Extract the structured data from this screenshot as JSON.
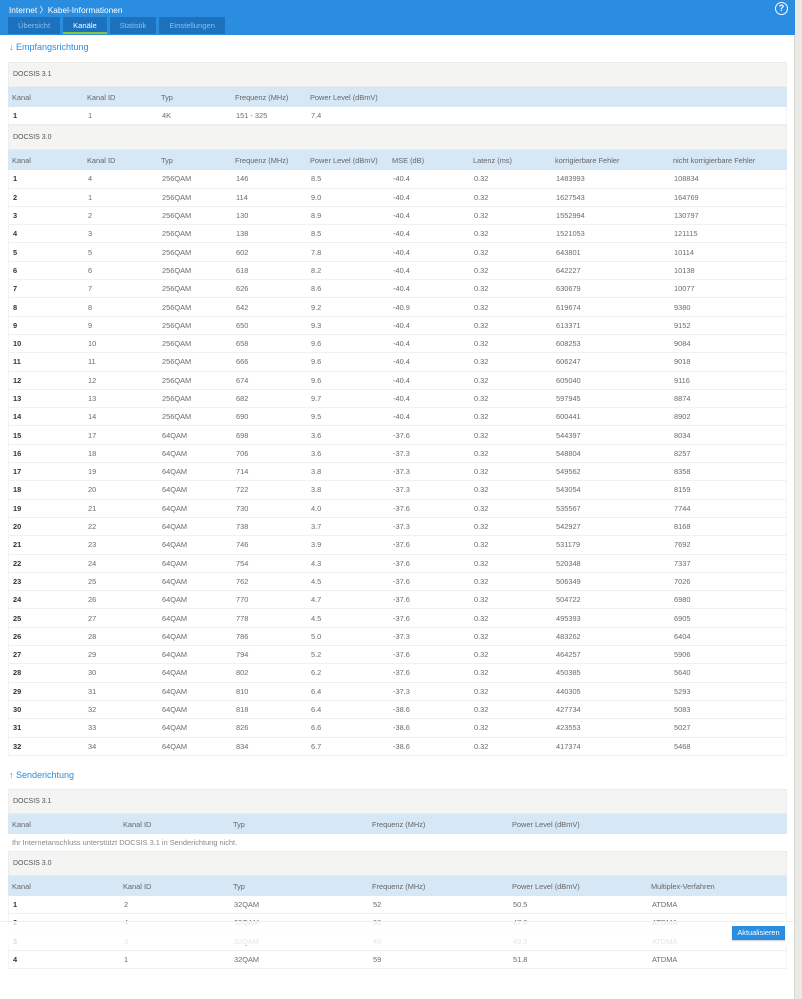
{
  "header": {
    "breadcrumb": "Internet 〉Kabel-Informationen",
    "help": "?"
  },
  "tabs": [
    "Übersicht",
    "Kanäle",
    "Statistik",
    "Einstellungen"
  ],
  "downstream": {
    "title": "↓ Empfangsrichtung",
    "docsis31": {
      "label": "DOCSIS 3.1",
      "headers": [
        "Kanal",
        "Kanal ID",
        "Typ",
        "Frequenz (MHz)",
        "Power Level (dBmV)"
      ],
      "rows": [
        [
          "1",
          "1",
          "4K",
          "151 - 325",
          "7.4"
        ]
      ]
    },
    "docsis30": {
      "label": "DOCSIS 3.0",
      "headers": [
        "Kanal",
        "Kanal ID",
        "Typ",
        "Frequenz (MHz)",
        "Power Level (dBmV)",
        "MSE (dB)",
        "Latenz (ms)",
        "korrigierbare Fehler",
        "nicht korrigierbare Fehler"
      ],
      "rows": [
        [
          "1",
          "4",
          "256QAM",
          "146",
          "8.5",
          "-40.4",
          "0.32",
          "1483993",
          "108834"
        ],
        [
          "2",
          "1",
          "256QAM",
          "114",
          "9.0",
          "-40.4",
          "0.32",
          "1627543",
          "164769"
        ],
        [
          "3",
          "2",
          "256QAM",
          "130",
          "8.9",
          "-40.4",
          "0.32",
          "1552994",
          "130797"
        ],
        [
          "4",
          "3",
          "256QAM",
          "138",
          "8.5",
          "-40.4",
          "0.32",
          "1521053",
          "121115"
        ],
        [
          "5",
          "5",
          "256QAM",
          "602",
          "7.8",
          "-40.4",
          "0.32",
          "643801",
          "10114"
        ],
        [
          "6",
          "6",
          "256QAM",
          "618",
          "8.2",
          "-40.4",
          "0.32",
          "642227",
          "10138"
        ],
        [
          "7",
          "7",
          "256QAM",
          "626",
          "8.6",
          "-40.4",
          "0.32",
          "630679",
          "10077"
        ],
        [
          "8",
          "8",
          "256QAM",
          "642",
          "9.2",
          "-40.9",
          "0.32",
          "619674",
          "9380"
        ],
        [
          "9",
          "9",
          "256QAM",
          "650",
          "9.3",
          "-40.4",
          "0.32",
          "613371",
          "9152"
        ],
        [
          "10",
          "10",
          "256QAM",
          "658",
          "9.6",
          "-40.4",
          "0.32",
          "608253",
          "9084"
        ],
        [
          "11",
          "11",
          "256QAM",
          "666",
          "9.6",
          "-40.4",
          "0.32",
          "606247",
          "9018"
        ],
        [
          "12",
          "12",
          "256QAM",
          "674",
          "9.6",
          "-40.4",
          "0.32",
          "605040",
          "9116"
        ],
        [
          "13",
          "13",
          "256QAM",
          "682",
          "9.7",
          "-40.4",
          "0.32",
          "597945",
          "8874"
        ],
        [
          "14",
          "14",
          "256QAM",
          "690",
          "9.5",
          "-40.4",
          "0.32",
          "600441",
          "8902"
        ],
        [
          "15",
          "17",
          "64QAM",
          "698",
          "3.6",
          "-37.6",
          "0.32",
          "544397",
          "8034"
        ],
        [
          "16",
          "18",
          "64QAM",
          "706",
          "3.6",
          "-37.3",
          "0.32",
          "548804",
          "8257"
        ],
        [
          "17",
          "19",
          "64QAM",
          "714",
          "3.8",
          "-37.3",
          "0.32",
          "549562",
          "8358"
        ],
        [
          "18",
          "20",
          "64QAM",
          "722",
          "3.8",
          "-37.3",
          "0.32",
          "543054",
          "8159"
        ],
        [
          "19",
          "21",
          "64QAM",
          "730",
          "4.0",
          "-37.6",
          "0.32",
          "535567",
          "7744"
        ],
        [
          "20",
          "22",
          "64QAM",
          "738",
          "3.7",
          "-37.3",
          "0.32",
          "542927",
          "8168"
        ],
        [
          "21",
          "23",
          "64QAM",
          "746",
          "3.9",
          "-37.6",
          "0.32",
          "531179",
          "7692"
        ],
        [
          "22",
          "24",
          "64QAM",
          "754",
          "4.3",
          "-37.6",
          "0.32",
          "520348",
          "7337"
        ],
        [
          "23",
          "25",
          "64QAM",
          "762",
          "4.5",
          "-37.6",
          "0.32",
          "506349",
          "7026"
        ],
        [
          "24",
          "26",
          "64QAM",
          "770",
          "4.7",
          "-37.6",
          "0.32",
          "504722",
          "6980"
        ],
        [
          "25",
          "27",
          "64QAM",
          "778",
          "4.5",
          "-37.6",
          "0.32",
          "495393",
          "6905"
        ],
        [
          "26",
          "28",
          "64QAM",
          "786",
          "5.0",
          "-37.3",
          "0.32",
          "483262",
          "6404"
        ],
        [
          "27",
          "29",
          "64QAM",
          "794",
          "5.2",
          "-37.6",
          "0.32",
          "464257",
          "5906"
        ],
        [
          "28",
          "30",
          "64QAM",
          "802",
          "6.2",
          "-37.6",
          "0.32",
          "450385",
          "5640"
        ],
        [
          "29",
          "31",
          "64QAM",
          "810",
          "6.4",
          "-37.3",
          "0.32",
          "440305",
          "5293"
        ],
        [
          "30",
          "32",
          "64QAM",
          "818",
          "6.4",
          "-38.6",
          "0.32",
          "427734",
          "5083"
        ],
        [
          "31",
          "33",
          "64QAM",
          "826",
          "6.6",
          "-38.6",
          "0.32",
          "423553",
          "5027"
        ],
        [
          "32",
          "34",
          "64QAM",
          "834",
          "6.7",
          "-38.6",
          "0.32",
          "417374",
          "5468"
        ]
      ]
    }
  },
  "upstream": {
    "title": "↑ Senderichtung",
    "docsis31": {
      "label": "DOCSIS 3.1",
      "headers": [
        "Kanal",
        "Kanal ID",
        "Typ",
        "Frequenz (MHz)",
        "Power Level (dBmV)"
      ],
      "message": "Ihr Internetanschluss unterstützt DOCSIS 3.1 in Senderichtung nicht."
    },
    "docsis30": {
      "label": "DOCSIS 3.0",
      "headers": [
        "Kanal",
        "Kanal ID",
        "Typ",
        "Frequenz (MHz)",
        "Power Level (dBmV)",
        "Multiplex-Verfahren"
      ],
      "rows": [
        [
          "1",
          "2",
          "32QAM",
          "52",
          "50.5",
          "ATDMA"
        ],
        [
          "2",
          "4",
          "32QAM",
          "36",
          "47.8",
          "ATDMA"
        ],
        [
          "3",
          "3",
          "32QAM",
          "40",
          "49.3",
          "ATDMA"
        ],
        [
          "4",
          "1",
          "32QAM",
          "59",
          "51.8",
          "ATDMA"
        ]
      ]
    }
  },
  "footer": {
    "refresh": "Aktualisieren"
  }
}
